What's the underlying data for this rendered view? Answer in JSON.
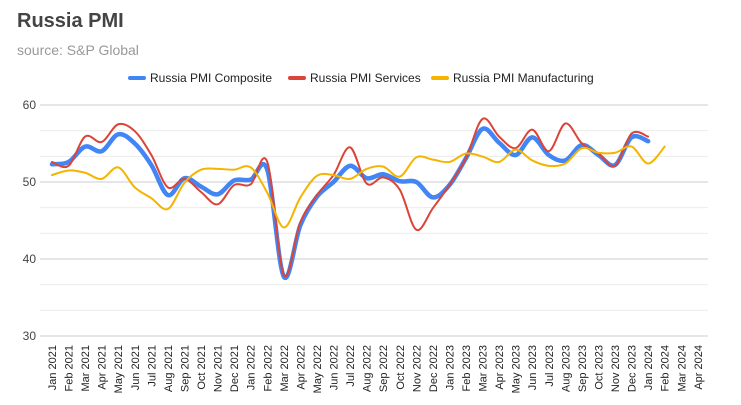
{
  "chart_data": {
    "type": "line",
    "title": "Russia PMI",
    "subtitle": "source: S&P Global",
    "legend_position": "top",
    "grid": true,
    "ylim": [
      30,
      60
    ],
    "yticks": [
      30,
      40,
      50,
      60
    ],
    "categories": [
      "Jan 2021",
      "Feb 2021",
      "Mar 2021",
      "Apr 2021",
      "May 2021",
      "Jun 2021",
      "Jul 2021",
      "Aug 2021",
      "Sep 2021",
      "Oct 2021",
      "Nov 2021",
      "Dec 2021",
      "Jan 2022",
      "Feb 2022",
      "Mar 2022",
      "Apr 2022",
      "May 2022",
      "Jun 2022",
      "Jul 2022",
      "Aug 2022",
      "Sep 2022",
      "Oct 2022",
      "Nov 2022",
      "Dec 2022",
      "Jan 2023",
      "Feb 2023",
      "Mar 2023",
      "Apr 2023",
      "May 2023",
      "Jun 2023",
      "Jul 2023",
      "Aug 2023",
      "Sep 2023",
      "Oct 2023",
      "Nov 2023",
      "Dec 2023",
      "Jan 2024",
      "Feb 2024",
      "Mar 2024",
      "Apr 2024"
    ],
    "series": [
      {
        "name": "Russia PMI Composite",
        "color": "#4285F4",
        "values": [
          52.3,
          52.6,
          54.6,
          54.0,
          56.2,
          55.0,
          52.2,
          48.3,
          50.5,
          49.4,
          48.4,
          50.2,
          50.3,
          51.6,
          37.7,
          44.4,
          48.1,
          50.0,
          52.1,
          50.5,
          51.0,
          50.1,
          50.0,
          48.0,
          49.6,
          53.1,
          56.9,
          55.1,
          53.5,
          55.8,
          53.5,
          52.8,
          54.8,
          53.5,
          52.2,
          55.8,
          55.3,
          null,
          null,
          null
        ]
      },
      {
        "name": "Russia PMI Services",
        "color": "#DB4437",
        "values": [
          52.6,
          52.1,
          55.9,
          55.2,
          57.5,
          56.6,
          53.5,
          49.3,
          50.4,
          48.7,
          47.1,
          49.6,
          49.7,
          52.6,
          37.9,
          44.8,
          48.3,
          50.9,
          54.5,
          49.8,
          50.6,
          49.0,
          43.8,
          46.6,
          49.6,
          53.1,
          58.2,
          55.9,
          54.4,
          56.8,
          54.0,
          57.6,
          55.0,
          53.7,
          52.1,
          56.3,
          55.9,
          null,
          null,
          null
        ]
      },
      {
        "name": "Russia PMI Manufacturing",
        "color": "#F4B400",
        "values": [
          50.9,
          51.5,
          51.2,
          50.4,
          51.9,
          49.3,
          47.9,
          46.5,
          49.9,
          51.6,
          51.7,
          51.6,
          51.9,
          48.6,
          44.1,
          48.0,
          50.8,
          50.9,
          50.4,
          51.7,
          52.0,
          50.7,
          53.2,
          52.9,
          52.6,
          53.7,
          53.3,
          52.6,
          54.2,
          52.8,
          52.1,
          52.4,
          54.4,
          53.8,
          53.8,
          54.6,
          52.4,
          54.6,
          null,
          null
        ]
      }
    ]
  }
}
